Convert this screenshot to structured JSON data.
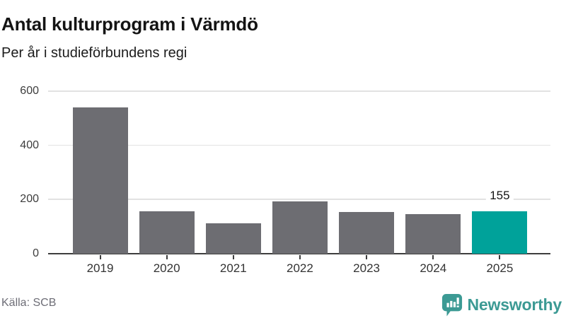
{
  "header": {
    "title": "Antal kulturprogram i Värmdö",
    "subtitle": "Per år i studieförbundens regi"
  },
  "chart_data": {
    "type": "bar",
    "title": "Antal kulturprogram i Värmdö",
    "subtitle": "Per år i studieförbundens regi",
    "categories": [
      "2019",
      "2020",
      "2021",
      "2022",
      "2023",
      "2024",
      "2025"
    ],
    "values": [
      540,
      155,
      111,
      192,
      153,
      145,
      155
    ],
    "xlabel": "",
    "ylabel": "",
    "ylim": [
      0,
      600
    ],
    "yticks": [
      0,
      200,
      400,
      600
    ],
    "grid": true,
    "legend": "none",
    "highlight_index": 6,
    "bar_label": {
      "index": 6,
      "text": "155"
    },
    "colors": {
      "bar": "#6d6d72",
      "highlight": "#00a29a",
      "gridline": "#e2e2e2",
      "axis": "#3d3d3d"
    }
  },
  "footer": {
    "source": "Källa: SCB",
    "brand": "Newsworthy",
    "brand_color": "#3c9a94"
  }
}
